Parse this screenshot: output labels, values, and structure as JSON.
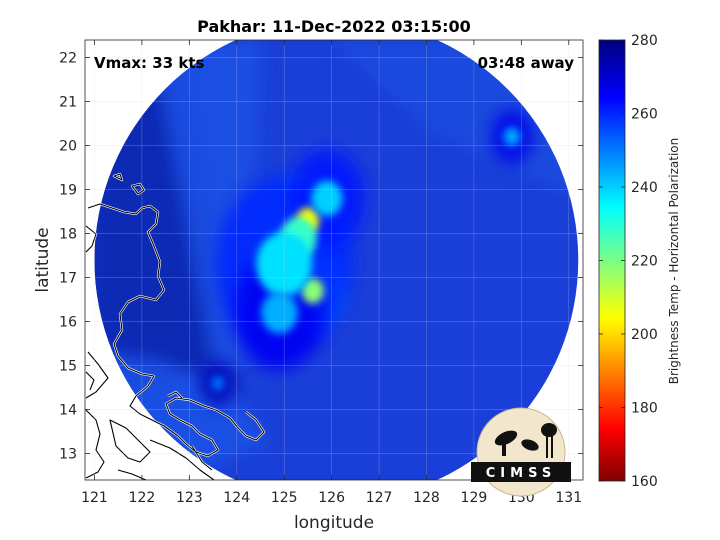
{
  "title": "Pakhar: 11-Dec-2022 03:15:00",
  "annotations": {
    "vmax": "Vmax: 33 kts",
    "time_away": "03:48 away"
  },
  "xlabel": "longitude",
  "ylabel": "latitude",
  "x_ticks": [
    "121",
    "122",
    "123",
    "124",
    "125",
    "126",
    "127",
    "128",
    "129",
    "130",
    "131"
  ],
  "y_ticks": [
    "13",
    "14",
    "15",
    "16",
    "17",
    "18",
    "19",
    "20",
    "21",
    "22"
  ],
  "colorbar": {
    "label": "Brightness Temp - Horizontal Polarization",
    "ticks": [
      "280",
      "260",
      "240",
      "220",
      "200",
      "180",
      "160"
    ]
  },
  "logo": {
    "text": "CIMSS"
  },
  "chart_data": {
    "type": "heatmap",
    "title": "Pakhar: 11-Dec-2022 03:15:00",
    "xlabel": "longitude",
    "ylabel": "latitude",
    "xlim": [
      120.8,
      131.3
    ],
    "ylim": [
      12.4,
      22.4
    ],
    "colorbar_range": [
      160,
      280
    ],
    "colormap": "jet",
    "grid": true,
    "background_field_K": 262,
    "cold_cells_K": [
      {
        "lon": 125.5,
        "lat": 18.3,
        "tb": 205
      },
      {
        "lon": 125.3,
        "lat": 17.9,
        "tb": 228
      },
      {
        "lon": 125.6,
        "lat": 16.7,
        "tb": 218
      },
      {
        "lon": 125.0,
        "lat": 17.3,
        "tb": 238
      },
      {
        "lon": 125.9,
        "lat": 18.8,
        "tb": 240
      },
      {
        "lon": 124.9,
        "lat": 16.2,
        "tb": 244
      },
      {
        "lon": 129.8,
        "lat": 20.2,
        "tb": 245
      },
      {
        "lon": 123.6,
        "lat": 14.6,
        "tb": 252
      }
    ],
    "swath_circle": {
      "center_lon": 126.1,
      "center_lat": 17.4,
      "radius_deg": 5.1
    }
  }
}
